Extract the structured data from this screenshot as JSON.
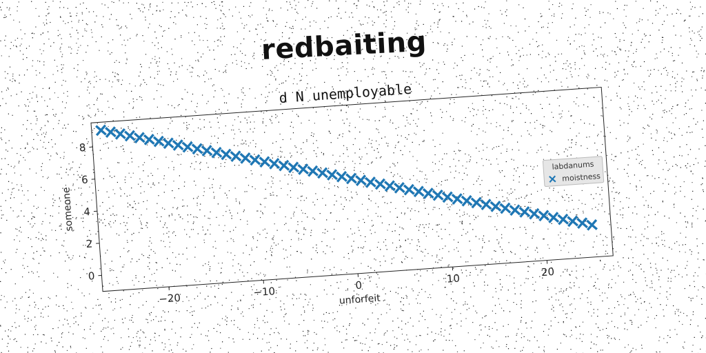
{
  "chart_data": {
    "type": "scatter",
    "title": "redbaiting",
    "subtitle": "d N unemployable",
    "xlabel": "unforfeit",
    "ylabel": "someone",
    "xlim": [
      -27,
      27
    ],
    "ylim": [
      -1,
      9.5
    ],
    "xticks": [
      -20,
      -10,
      0,
      10,
      20
    ],
    "yticks": [
      0,
      2,
      4,
      6,
      8
    ],
    "xtick_labels": [
      "−20",
      "−10",
      "0",
      "10",
      "20"
    ],
    "ytick_labels": [
      "0",
      "2",
      "4",
      "6",
      "8"
    ],
    "legend": {
      "title": "labdanums",
      "placement": "center-right"
    },
    "series": [
      {
        "name": "moistness",
        "marker": "X",
        "color": "#1f77b4",
        "x_range": [
          -26,
          25
        ],
        "y_range": [
          9,
          1
        ],
        "count": 52
      }
    ]
  }
}
